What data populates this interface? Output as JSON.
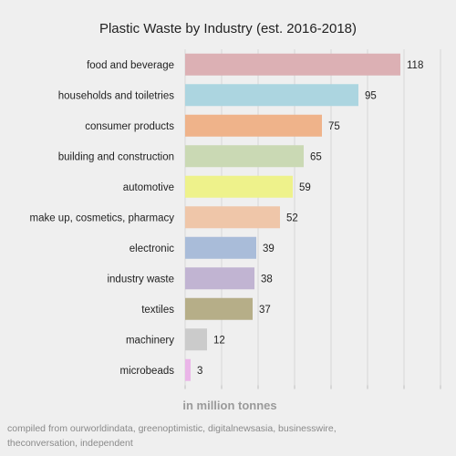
{
  "chart_data": {
    "type": "bar",
    "orientation": "horizontal",
    "title": "Plastic Waste by Industry (est. 2016-2018)",
    "xlabel": "in million tonnes",
    "ylabel": "",
    "xlim": [
      0,
      140
    ],
    "grid": true,
    "categories": [
      "food and beverage",
      "households and toiletries",
      "consumer products",
      "building and construction",
      "automotive",
      "make up, cosmetics, pharmacy",
      "electronic",
      "industry waste",
      "textiles",
      "machinery",
      "microbeads"
    ],
    "values": [
      118,
      95,
      75,
      65,
      59,
      52,
      39,
      38,
      37,
      12,
      3
    ],
    "colors": [
      "#dcb0b4",
      "#acd5e0",
      "#efb38a",
      "#cad9b4",
      "#eef28b",
      "#efc6a9",
      "#a9bcd9",
      "#c1b4d2",
      "#b6ae88",
      "#cbcbcb",
      "#eab5e8"
    ]
  },
  "source_note": "compiled from ourworldindata, greenoptimistic, digitalnewsasia, businesswire, theconversation, independent"
}
